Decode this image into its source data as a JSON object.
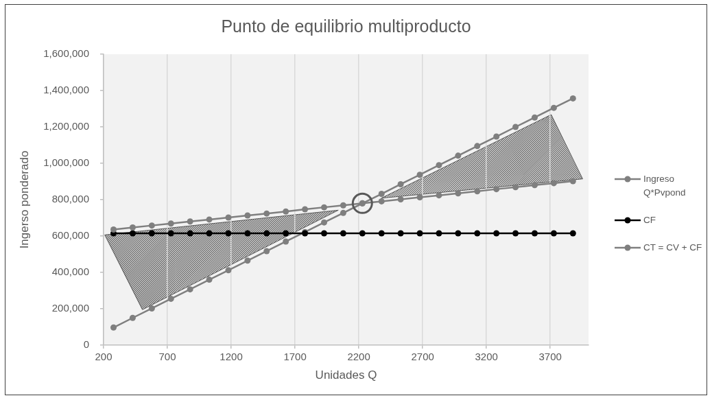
{
  "chart_data": {
    "type": "line",
    "title": "Punto de equilibrio multiproducto",
    "xlabel": "Unidades Q",
    "ylabel": "Ingerso ponderado",
    "x": [
      278,
      428,
      578,
      728,
      878,
      1028,
      1178,
      1328,
      1478,
      1628,
      1778,
      1928,
      2078,
      2228,
      2378,
      2528,
      2678,
      2828,
      2978,
      3128,
      3278,
      3428,
      3578,
      3728,
      3878
    ],
    "series": [
      {
        "name": "Ingreso Q*Pvpond",
        "color": "#7f7f7f",
        "values": [
          97000,
          150000,
          202000,
          255000,
          307000,
          360000,
          412000,
          465000,
          517000,
          570000,
          622000,
          675000,
          727000,
          780000,
          832000,
          885000,
          937000,
          990000,
          1042000,
          1095000,
          1147000,
          1200000,
          1252000,
          1305000,
          1357000
        ]
      },
      {
        "name": "CF",
        "color": "#000000",
        "values": [
          615000,
          615000,
          615000,
          615000,
          615000,
          615000,
          615000,
          615000,
          615000,
          615000,
          615000,
          615000,
          615000,
          615000,
          615000,
          615000,
          615000,
          615000,
          615000,
          615000,
          615000,
          615000,
          615000,
          615000,
          615000
        ]
      },
      {
        "name": "CT = CV + CF",
        "color": "#7f7f7f",
        "values": [
          636000,
          647000,
          658000,
          669000,
          680000,
          691000,
          702000,
          713000,
          724000,
          735000,
          747000,
          758000,
          769000,
          780000,
          791000,
          802000,
          813000,
          824000,
          835000,
          846000,
          858000,
          869000,
          880000,
          891000,
          902000
        ]
      }
    ],
    "xlim": [
      200,
      4000
    ],
    "xticks": [
      200,
      700,
      1200,
      1700,
      2200,
      2700,
      3200,
      3700
    ],
    "ylim": [
      0,
      1600000
    ],
    "yticks": [
      0,
      {
        "value": 200000,
        "label": "200,000"
      },
      {
        "value": 400000,
        "label": "400,000"
      },
      {
        "value": 600000,
        "label": "600,000"
      },
      {
        "value": 800000,
        "label": "800,000"
      },
      {
        "value": 1000000,
        "label": "1,000,000"
      },
      {
        "value": 1200000,
        "label": "1,200,000"
      },
      {
        "value": 1400000,
        "label": "1,400,000"
      },
      {
        "value": 1600000,
        "label": "1,600,000"
      }
    ],
    "grid": "x",
    "legend": "right",
    "marker": "circle",
    "line_style": "solid"
  }
}
